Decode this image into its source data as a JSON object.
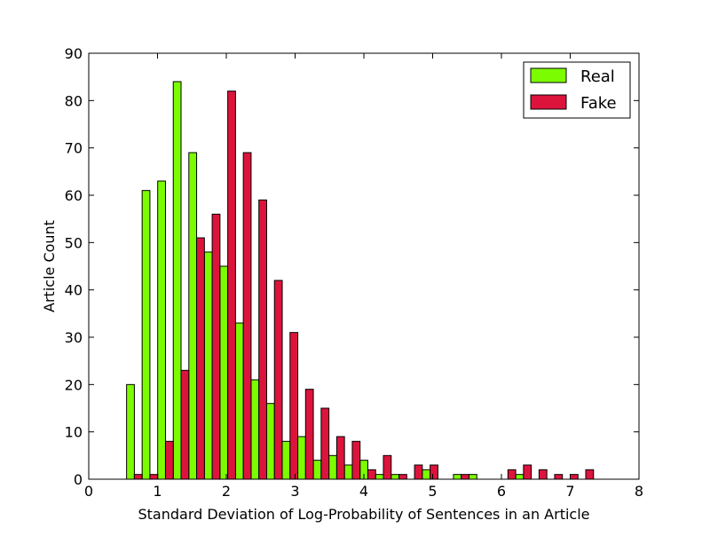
{
  "chart_data": {
    "type": "bar",
    "title": "",
    "xlabel": "Standard Deviation of Log-Probability of Sentences in an Article",
    "ylabel": "Article Count",
    "xlim": [
      0,
      8
    ],
    "ylim": [
      0,
      90
    ],
    "xticks": [
      "0",
      "1",
      "2",
      "3",
      "4",
      "5",
      "6",
      "7",
      "8"
    ],
    "yticks": [
      "0",
      "10",
      "20",
      "30",
      "40",
      "50",
      "60",
      "70",
      "80",
      "90"
    ],
    "grid": false,
    "legend_position": "top-right",
    "bin_start": 0.55,
    "bin_width": 0.2263,
    "x": [
      0.66,
      0.89,
      1.12,
      1.34,
      1.57,
      1.8,
      2.02,
      2.25,
      2.48,
      2.7,
      2.93,
      3.16,
      3.38,
      3.61,
      3.84,
      4.06,
      4.29,
      4.52,
      4.74,
      4.97,
      5.2,
      5.42,
      5.65,
      5.88,
      6.1,
      6.33,
      6.56,
      6.78,
      7.01,
      7.24
    ],
    "series": [
      {
        "name": "Real",
        "color": "#7cfc00",
        "values": [
          20,
          61,
          63,
          84,
          69,
          48,
          45,
          33,
          21,
          16,
          8,
          9,
          4,
          5,
          3,
          4,
          1,
          1,
          0,
          2,
          0,
          1,
          1,
          0,
          0,
          1,
          0,
          0,
          0,
          0
        ]
      },
      {
        "name": "Fake",
        "color": "#dc143c",
        "values": [
          1,
          1,
          8,
          23,
          51,
          56,
          82,
          69,
          59,
          42,
          31,
          19,
          15,
          9,
          8,
          2,
          5,
          1,
          3,
          3,
          0,
          1,
          0,
          0,
          2,
          3,
          2,
          1,
          1,
          2
        ]
      }
    ]
  }
}
